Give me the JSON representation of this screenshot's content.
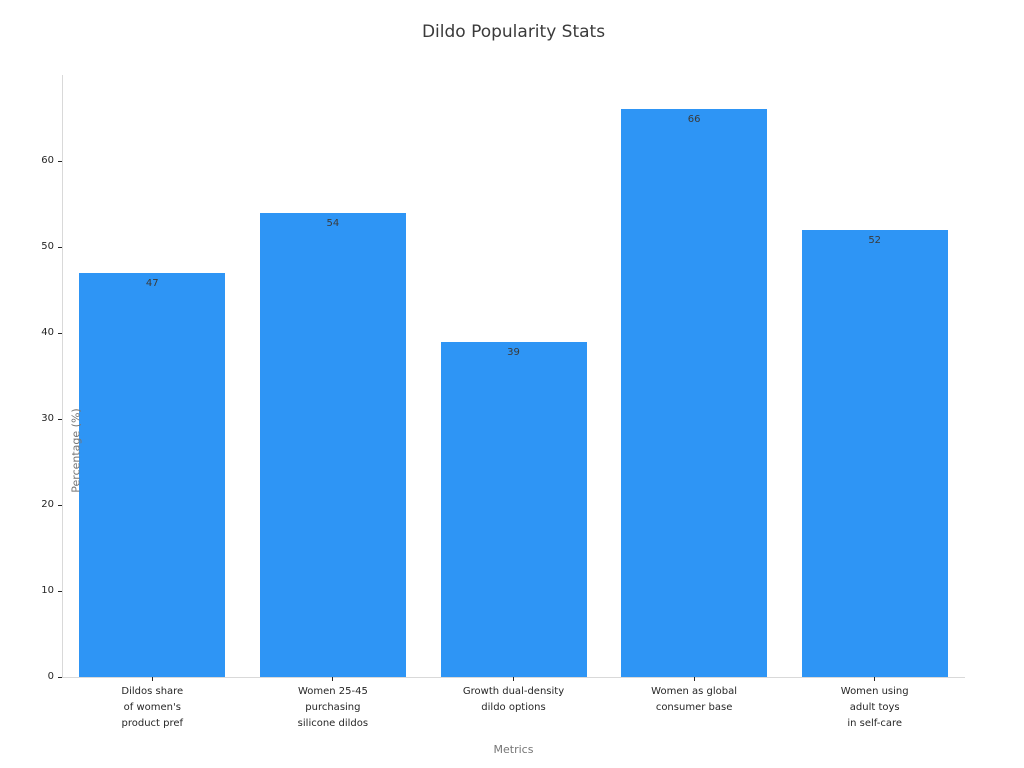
{
  "chart_data": {
    "type": "bar",
    "title": "Dildo Popularity Stats",
    "xlabel": "Metrics",
    "ylabel": "Percentage (%)",
    "categories": [
      "Dildos share\nof women's\nproduct pref",
      "Women 25-45\npurchasing\nsilicone dildos",
      "Growth dual-density\ndildo options",
      "Women as global\nconsumer base",
      "Women using\nadult toys\nin self-care"
    ],
    "values": [
      47,
      54,
      39,
      66,
      52
    ],
    "yticks": [
      0,
      10,
      20,
      30,
      40,
      50,
      60
    ],
    "ylim": [
      0,
      70
    ],
    "grid": false,
    "legend": "none",
    "colors": {
      "bar_fill": "#2E95F5",
      "value_label": "#3a3a3a",
      "spine": "#d9d9d9",
      "tick": "#262626",
      "axis_title": "#757575",
      "title": "#3a3a3a",
      "background": "#ffffff"
    }
  }
}
